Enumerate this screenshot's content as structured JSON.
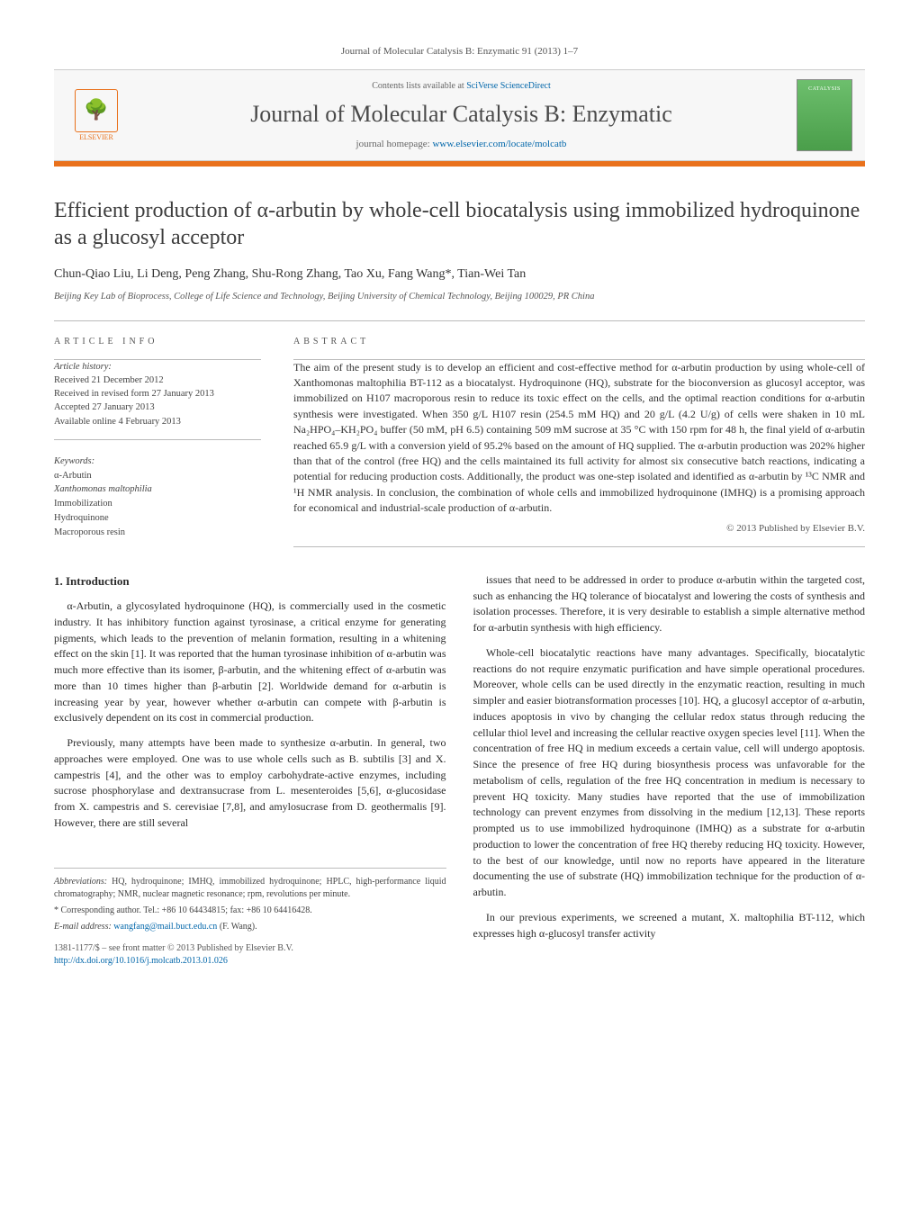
{
  "citation": "Journal of Molecular Catalysis B: Enzymatic 91 (2013) 1–7",
  "header": {
    "contents_prefix": "Contents lists available at ",
    "contents_link": "SciVerse ScienceDirect",
    "journal_name": "Journal of Molecular Catalysis B: Enzymatic",
    "homepage_prefix": "journal homepage: ",
    "homepage_url": "www.elsevier.com/locate/molcatb",
    "publisher_label": "ELSEVIER",
    "cover_label": "CATALYSIS"
  },
  "title": "Efficient production of α-arbutin by whole-cell biocatalysis using immobilized hydroquinone as a glucosyl acceptor",
  "authors": "Chun-Qiao Liu, Li Deng, Peng Zhang, Shu-Rong Zhang, Tao Xu, Fang Wang*, Tian-Wei Tan",
  "affiliation": "Beijing Key Lab of Bioprocess, College of Life Science and Technology, Beijing University of Chemical Technology, Beijing 100029, PR China",
  "article_info": {
    "heading": "ARTICLE INFO",
    "history_label": "Article history:",
    "received": "Received 21 December 2012",
    "revised": "Received in revised form 27 January 2013",
    "accepted": "Accepted 27 January 2013",
    "online": "Available online 4 February 2013",
    "keywords_label": "Keywords:",
    "keywords": [
      "α-Arbutin",
      "Xanthomonas maltophilia",
      "Immobilization",
      "Hydroquinone",
      "Macroporous resin"
    ]
  },
  "abstract": {
    "heading": "ABSTRACT",
    "text": "The aim of the present study is to develop an efficient and cost-effective method for α-arbutin production by using whole-cell of Xanthomonas maltophilia BT-112 as a biocatalyst. Hydroquinone (HQ), substrate for the bioconversion as glucosyl acceptor, was immobilized on H107 macroporous resin to reduce its toxic effect on the cells, and the optimal reaction conditions for α-arbutin synthesis were investigated. When 350 g/L H107 resin (254.5 mM HQ) and 20 g/L (4.2 U/g) of cells were shaken in 10 mL Na₂HPO₄–KH₂PO₄ buffer (50 mM, pH 6.5) containing 509 mM sucrose at 35 °C with 150 rpm for 48 h, the final yield of α-arbutin reached 65.9 g/L with a conversion yield of 95.2% based on the amount of HQ supplied. The α-arbutin production was 202% higher than that of the control (free HQ) and the cells maintained its full activity for almost six consecutive batch reactions, indicating a potential for reducing production costs. Additionally, the product was one-step isolated and identified as α-arbutin by ¹³C NMR and ¹H NMR analysis. In conclusion, the combination of whole cells and immobilized hydroquinone (IMHQ) is a promising approach for economical and industrial-scale production of α-arbutin.",
    "copyright": "© 2013 Published by Elsevier B.V."
  },
  "intro": {
    "heading": "1. Introduction",
    "p1": "α-Arbutin, a glycosylated hydroquinone (HQ), is commercially used in the cosmetic industry. It has inhibitory function against tyrosinase, a critical enzyme for generating pigments, which leads to the prevention of melanin formation, resulting in a whitening effect on the skin [1]. It was reported that the human tyrosinase inhibition of α-arbutin was much more effective than its isomer, β-arbutin, and the whitening effect of α-arbutin was more than 10 times higher than β-arbutin [2]. Worldwide demand for α-arbutin is increasing year by year, however whether α-arbutin can compete with β-arbutin is exclusively dependent on its cost in commercial production.",
    "p2": "Previously, many attempts have been made to synthesize α-arbutin. In general, two approaches were employed. One was to use whole cells such as B. subtilis [3] and X. campestris [4], and the other was to employ carbohydrate-active enzymes, including sucrose phosphorylase and dextransucrase from L. mesenteroides [5,6], α-glucosidase from X. campestris and S. cerevisiae [7,8], and amylosucrase from D. geothermalis [9]. However, there are still several",
    "p3": "issues that need to be addressed in order to produce α-arbutin within the targeted cost, such as enhancing the HQ tolerance of biocatalyst and lowering the costs of synthesis and isolation processes. Therefore, it is very desirable to establish a simple alternative method for α-arbutin synthesis with high efficiency.",
    "p4": "Whole-cell biocatalytic reactions have many advantages. Specifically, biocatalytic reactions do not require enzymatic purification and have simple operational procedures. Moreover, whole cells can be used directly in the enzymatic reaction, resulting in much simpler and easier biotransformation processes [10]. HQ, a glucosyl acceptor of α-arbutin, induces apoptosis in vivo by changing the cellular redox status through reducing the cellular thiol level and increasing the cellular reactive oxygen species level [11]. When the concentration of free HQ in medium exceeds a certain value, cell will undergo apoptosis. Since the presence of free HQ during biosynthesis process was unfavorable for the metabolism of cells, regulation of the free HQ concentration in medium is necessary to prevent HQ toxicity. Many studies have reported that the use of immobilization technology can prevent enzymes from dissolving in the medium [12,13]. These reports prompted us to use immobilized hydroquinone (IMHQ) as a substrate for α-arbutin production to lower the concentration of free HQ thereby reducing HQ toxicity. However, to the best of our knowledge, until now no reports have appeared in the literature documenting the use of substrate (HQ) immobilization technique for the production of α-arbutin.",
    "p5": "In our previous experiments, we screened a mutant, X. maltophilia BT-112, which expresses high α-glucosyl transfer activity"
  },
  "footnotes": {
    "abbrev_label": "Abbreviations:",
    "abbrev_text": " HQ, hydroquinone; IMHQ, immobilized hydroquinone; HPLC, high-performance liquid chromatography; NMR, nuclear magnetic resonance; rpm, revolutions per minute.",
    "corr_label": "* Corresponding author. Tel.: +86 10 64434815; fax: +86 10 64416428.",
    "email_label": "E-mail address: ",
    "email": "wangfang@mail.buct.edu.cn",
    "email_suffix": " (F. Wang)."
  },
  "doi": {
    "line1": "1381-1177/$ – see front matter © 2013 Published by Elsevier B.V.",
    "line2": "http://dx.doi.org/10.1016/j.molcatb.2013.01.026"
  },
  "colors": {
    "accent_orange": "#e9711c",
    "link_blue": "#0066aa",
    "rule_gray": "#bbbbbb",
    "text_gray": "#333333"
  }
}
